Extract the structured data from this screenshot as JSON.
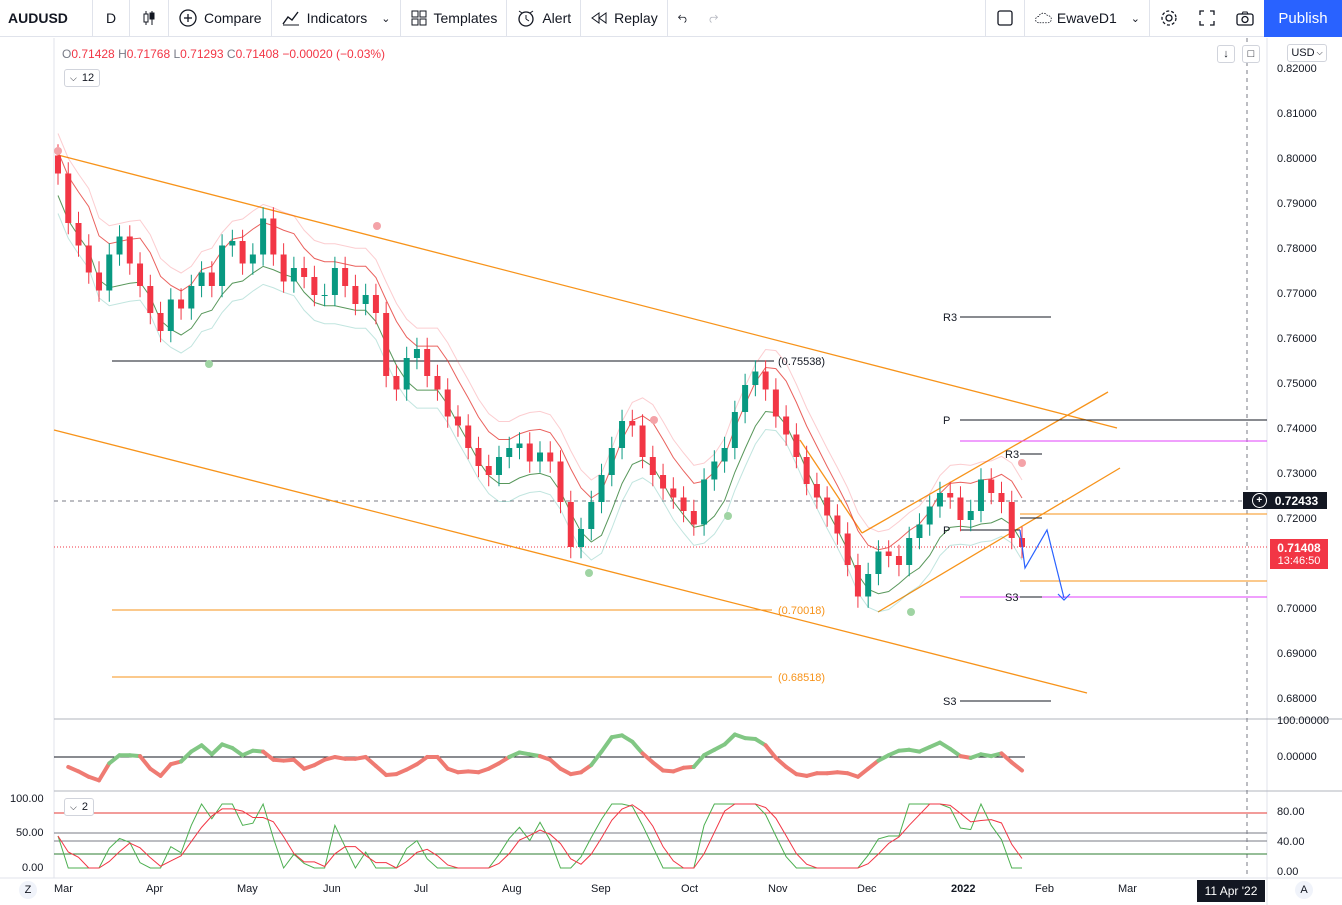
{
  "toolbar": {
    "symbol": "AUDUSD",
    "interval": "D",
    "compare": "Compare",
    "indicators": "Indicators",
    "templates": "Templates",
    "alert": "Alert",
    "replay": "Replay",
    "layout_name": "EwaveD1",
    "publish": "Publish"
  },
  "legend": {
    "open_label": "O",
    "open": "0.71428",
    "high_label": "H",
    "high": "0.71768",
    "low_label": "L",
    "low": "0.71293",
    "close_label": "C",
    "close": "0.71408",
    "change": "−0.00020 (−0.03%)",
    "indicator_count": "12",
    "pane3_count": "2"
  },
  "currency": "USD",
  "price_axis": [
    "0.82000",
    "0.81000",
    "0.80000",
    "0.79000",
    "0.78000",
    "0.77000",
    "0.76000",
    "0.75000",
    "0.74000",
    "0.73000",
    "0.72000",
    "0.71000",
    "0.70000",
    "0.69000",
    "0.68000"
  ],
  "price_axis_values": [
    0.82,
    0.81,
    0.8,
    0.79,
    0.78,
    0.77,
    0.76,
    0.75,
    0.74,
    0.73,
    0.72,
    0.71,
    0.7,
    0.69,
    0.68
  ],
  "crosshair_price": "0.72433",
  "last_price": "0.71408",
  "countdown": "13:46:50",
  "osc_axis": [
    "100.00000",
    "0.00000"
  ],
  "stoch_axis_right": [
    "80.00",
    "40.00",
    "0.00"
  ],
  "stoch_axis_left": [
    "100.00",
    "50.00",
    "0.00"
  ],
  "time_axis": [
    "Mar",
    "Apr",
    "May",
    "Jun",
    "Jul",
    "Aug",
    "Sep",
    "Oct",
    "Nov",
    "Dec",
    "2022",
    "Feb",
    "Mar"
  ],
  "crosshair_date": "11 Apr '22",
  "bottom_left": "Z",
  "bottom_right": "A",
  "annotations": {
    "high_level": "(0.75538)",
    "fib_1": "(0.70018)",
    "fib_2": "(0.68518)",
    "pivots": [
      "R3",
      "P",
      "R3",
      "P",
      "S3",
      "S3"
    ]
  },
  "colors": {
    "up": "#089981",
    "down": "#f23645",
    "channel": "#f7931a",
    "accent": "#2962ff",
    "pivot_magenta": "#e040fb",
    "ma_green": "#2e7d32",
    "ma_red": "#e53935"
  },
  "chart_data": {
    "type": "candlestick",
    "symbol": "AUDUSD",
    "interval": "D",
    "ylim": [
      0.675,
      0.825
    ],
    "levels": [
      0.75538,
      0.70018,
      0.68518
    ],
    "last": 0.71408,
    "ohlc_last": {
      "open": 0.71428,
      "high": 0.71768,
      "low": 0.71293,
      "close": 0.71408
    },
    "closes": [
      0.797,
      0.786,
      0.781,
      0.775,
      0.771,
      0.779,
      0.783,
      0.777,
      0.772,
      0.766,
      0.762,
      0.769,
      0.767,
      0.772,
      0.775,
      0.772,
      0.781,
      0.782,
      0.777,
      0.779,
      0.787,
      0.779,
      0.773,
      0.776,
      0.774,
      0.77,
      0.77,
      0.776,
      0.772,
      0.768,
      0.77,
      0.766,
      0.752,
      0.749,
      0.756,
      0.758,
      0.752,
      0.749,
      0.743,
      0.741,
      0.736,
      0.732,
      0.73,
      0.734,
      0.736,
      0.737,
      0.733,
      0.735,
      0.733,
      0.724,
      0.714,
      0.718,
      0.724,
      0.73,
      0.736,
      0.742,
      0.741,
      0.734,
      0.73,
      0.727,
      0.725,
      0.722,
      0.719,
      0.729,
      0.733,
      0.736,
      0.744,
      0.75,
      0.753,
      0.749,
      0.743,
      0.739,
      0.734,
      0.728,
      0.725,
      0.721,
      0.717,
      0.71,
      0.703,
      0.708,
      0.713,
      0.712,
      0.71,
      0.716,
      0.719,
      0.723,
      0.726,
      0.725,
      0.72,
      0.722,
      0.729,
      0.726,
      0.724,
      0.716,
      0.714
    ]
  }
}
